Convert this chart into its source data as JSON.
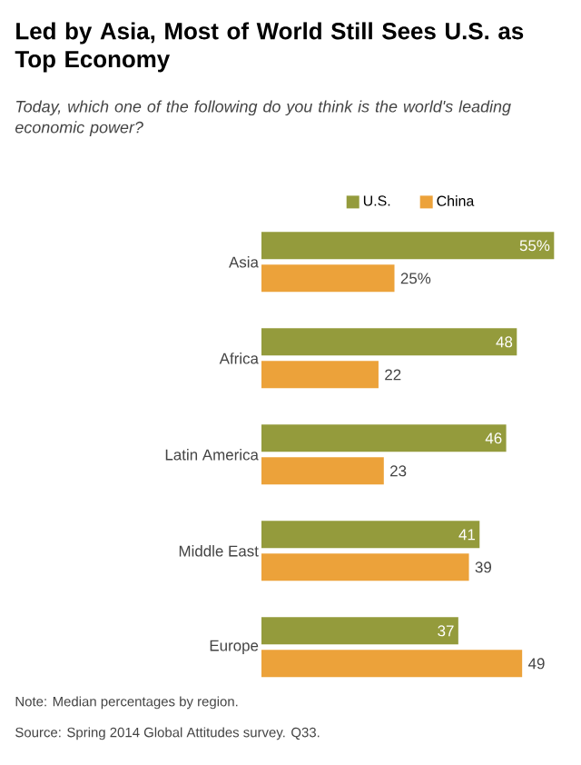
{
  "chart_data": {
    "type": "bar",
    "orientation": "horizontal",
    "title": "Led by Asia, Most of World Still Sees U.S. as Top Economy",
    "subtitle": "Today, which one of the following do you think is the world's leading economic power?",
    "categories": [
      "Asia",
      "Africa",
      "Latin America",
      "Middle East",
      "Europe"
    ],
    "legend": "top",
    "series": [
      {
        "name": "U.S.",
        "color": "#949b3c",
        "values": [
          55,
          48,
          46,
          41,
          37
        ],
        "value_labels": [
          "55%",
          "48",
          "46",
          "41",
          "37"
        ]
      },
      {
        "name": "China",
        "color": "#eca23a",
        "values": [
          25,
          22,
          23,
          39,
          49
        ],
        "value_labels": [
          "25%",
          "22",
          "23",
          "39",
          "49"
        ]
      }
    ],
    "annotations": [
      "Note: Median percentages by region.",
      "Source: Spring 2014 Global Attitudes survey. Q33."
    ]
  }
}
